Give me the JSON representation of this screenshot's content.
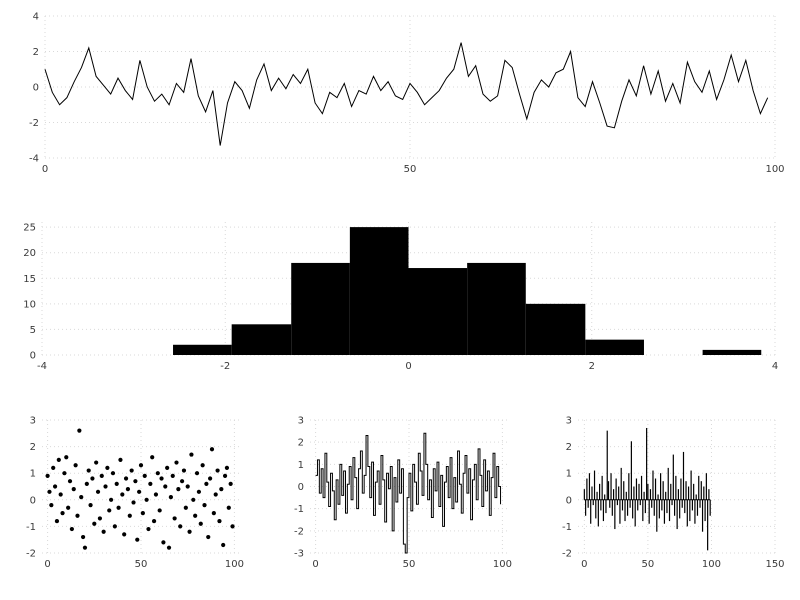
{
  "figure": {
    "background": "#ffffff",
    "grid_color": "#d9d9d9",
    "data_color": "#000000",
    "tick_color": "#3a3a3a"
  },
  "chart_data": [
    {
      "id": "line-plot",
      "type": "line",
      "title": "",
      "xlabel": "",
      "ylabel": "",
      "xlim": [
        0,
        100
      ],
      "ylim": [
        -4,
        4
      ],
      "xticks": [
        0,
        50,
        100
      ],
      "yticks": [
        -4,
        -2,
        0,
        2,
        4
      ],
      "grid": true,
      "values": [
        1.0,
        -0.3,
        -1.0,
        -0.6,
        0.3,
        1.1,
        2.2,
        0.6,
        0.1,
        -0.4,
        0.5,
        -0.2,
        -0.7,
        1.5,
        0.0,
        -0.8,
        -0.4,
        -1.0,
        0.2,
        -0.3,
        1.6,
        -0.5,
        -1.4,
        -0.2,
        -3.3,
        -0.9,
        0.3,
        -0.2,
        -1.2,
        0.4,
        1.3,
        -0.2,
        0.5,
        -0.1,
        0.7,
        0.2,
        1.0,
        -0.9,
        -1.5,
        -0.3,
        -0.6,
        0.2,
        -1.1,
        -0.2,
        -0.4,
        0.6,
        -0.2,
        0.3,
        -0.5,
        -0.7,
        0.2,
        -0.3,
        -1.0,
        -0.6,
        -0.2,
        0.5,
        1.0,
        2.5,
        0.6,
        1.2,
        -0.4,
        -0.8,
        -0.5,
        1.5,
        1.1,
        -0.4,
        -1.8,
        -0.3,
        0.4,
        0.0,
        0.8,
        1.0,
        2.0,
        -0.6,
        -1.1,
        0.3,
        -0.9,
        -2.2,
        -2.3,
        -0.8,
        0.4,
        -0.5,
        1.2,
        -0.4,
        0.9,
        -0.8,
        0.2,
        -0.9,
        1.4,
        0.3,
        -0.3,
        0.9,
        -0.7,
        0.4,
        1.8,
        0.3,
        1.5,
        -0.2,
        -1.5,
        -0.6
      ]
    },
    {
      "id": "histogram",
      "type": "bar",
      "title": "",
      "xlabel": "",
      "ylabel": "",
      "xlim": [
        -4,
        4
      ],
      "ylim": [
        0,
        26
      ],
      "xticks": [
        -4,
        -2,
        0,
        2,
        4
      ],
      "yticks": [
        0,
        5,
        10,
        15,
        20,
        25
      ],
      "grid": true,
      "bin_edges": [
        -2.57,
        -1.93,
        -1.28,
        -0.64,
        0.0,
        0.64,
        1.28,
        1.93,
        2.57,
        3.21,
        3.85
      ],
      "counts": [
        2,
        6,
        18,
        25,
        17,
        18,
        10,
        3,
        0,
        1
      ]
    },
    {
      "id": "scatter-plot",
      "type": "scatter",
      "title": "",
      "xlabel": "",
      "ylabel": "",
      "xlim": [
        -3,
        103
      ],
      "ylim": [
        -2,
        3
      ],
      "xticks": [
        0,
        50,
        100
      ],
      "yticks": [
        -2,
        -1,
        0,
        1,
        2,
        3
      ],
      "grid": true,
      "values": [
        0.9,
        0.3,
        -0.2,
        1.2,
        0.5,
        -0.8,
        1.5,
        0.2,
        -0.5,
        1.0,
        1.6,
        -0.3,
        0.7,
        -1.1,
        0.4,
        1.3,
        -0.6,
        2.6,
        0.1,
        -1.4,
        -1.8,
        0.6,
        1.1,
        -0.2,
        0.8,
        -0.9,
        1.4,
        0.3,
        -0.7,
        0.9,
        -1.2,
        0.5,
        1.2,
        -0.4,
        0.0,
        1.0,
        -1.0,
        0.6,
        -0.3,
        1.5,
        0.2,
        -1.3,
        0.8,
        0.4,
        -0.6,
        1.1,
        -0.1,
        0.7,
        -1.5,
        0.3,
        1.3,
        -0.5,
        0.9,
        0.0,
        -1.1,
        0.6,
        1.6,
        -0.8,
        0.2,
        1.0,
        -0.4,
        0.8,
        -1.6,
        0.5,
        1.2,
        -1.8,
        0.1,
        0.9,
        -0.7,
        1.4,
        0.4,
        -1.0,
        0.7,
        1.1,
        -0.3,
        0.5,
        -1.2,
        1.7,
        0.0,
        -0.6,
        1.0,
        0.3,
        -0.9,
        1.3,
        -0.2,
        0.6,
        -1.4,
        0.8,
        1.9,
        -0.5,
        0.2,
        1.1,
        -0.8,
        0.4,
        -1.7,
        0.9,
        1.2,
        -0.3,
        0.6,
        -1.0
      ]
    },
    {
      "id": "step-plot",
      "type": "step",
      "title": "",
      "xlabel": "",
      "ylabel": "",
      "xlim": [
        -3,
        103
      ],
      "ylim": [
        -3,
        3
      ],
      "xticks": [
        0,
        50,
        100
      ],
      "yticks": [
        -3,
        -2,
        -1,
        0,
        1,
        2,
        3
      ],
      "grid": true,
      "values": [
        0.5,
        1.2,
        -0.3,
        0.8,
        -0.5,
        1.5,
        0.2,
        -0.9,
        0.6,
        -0.2,
        -1.5,
        0.3,
        -0.8,
        1.0,
        -0.4,
        0.7,
        -1.2,
        0.1,
        0.9,
        -0.6,
        1.3,
        0.4,
        -1.0,
        0.8,
        1.6,
        -0.3,
        0.5,
        2.3,
        0.9,
        -0.5,
        1.1,
        -1.3,
        0.2,
        0.7,
        -0.8,
        1.4,
        0.3,
        -1.6,
        0.6,
        -0.1,
        0.9,
        -2.0,
        0.4,
        -0.7,
        1.2,
        -0.3,
        0.8,
        -2.6,
        -3.0,
        -0.5,
        0.6,
        -1.1,
        1.0,
        0.2,
        -0.8,
        1.5,
        0.7,
        -0.4,
        2.4,
        1.0,
        -0.6,
        0.3,
        -1.4,
        0.8,
        -0.2,
        1.1,
        -0.9,
        0.5,
        -1.8,
        0.2,
        0.9,
        -0.5,
        1.3,
        -1.0,
        0.4,
        -0.7,
        1.6,
        0.1,
        -1.2,
        0.6,
        1.4,
        -0.3,
        0.8,
        -1.5,
        0.3,
        1.0,
        -0.6,
        1.7,
        0.5,
        -0.9,
        1.2,
        -0.2,
        0.7,
        -1.3,
        0.4,
        1.5,
        -0.5,
        0.9,
        0.0,
        -0.8
      ]
    },
    {
      "id": "stem-plot",
      "type": "stem",
      "title": "",
      "xlabel": "",
      "ylabel": "",
      "xlim": [
        -5,
        150
      ],
      "ylim": [
        -2,
        3
      ],
      "xticks": [
        0,
        50,
        100,
        150
      ],
      "yticks": [
        -2,
        -1,
        0,
        1,
        2,
        3
      ],
      "grid": true,
      "values": [
        0.4,
        -0.6,
        0.8,
        -0.3,
        1.0,
        -0.9,
        0.5,
        -0.2,
        1.1,
        -0.7,
        0.3,
        -1.0,
        0.6,
        -0.4,
        0.9,
        -0.8,
        0.2,
        -0.5,
        2.6,
        0.7,
        -0.3,
        1.0,
        -0.6,
        0.4,
        -1.1,
        0.8,
        -0.2,
        0.5,
        -0.9,
        1.2,
        -0.4,
        0.7,
        -0.8,
        0.3,
        -0.6,
        1.0,
        -0.3,
        2.2,
        -0.7,
        0.5,
        -1.0,
        0.8,
        -0.4,
        0.6,
        -0.2,
        0.9,
        -0.8,
        0.3,
        -0.5,
        2.7,
        0.6,
        -0.9,
        0.4,
        -0.3,
        1.1,
        -0.6,
        0.8,
        -1.2,
        0.2,
        -0.7,
        1.0,
        -0.4,
        0.7,
        -0.9,
        0.3,
        -0.5,
        1.2,
        -0.8,
        0.6,
        -0.2,
        1.7,
        -0.6,
        0.9,
        -1.1,
        0.4,
        -0.7,
        0.8,
        -0.3,
        1.8,
        -0.5,
        0.7,
        -1.0,
        0.5,
        -0.8,
        1.1,
        -0.4,
        0.6,
        -0.9,
        0.2,
        -0.6,
        0.9,
        -0.3,
        0.7,
        -1.2,
        0.5,
        -0.8,
        1.0,
        -1.9,
        0.4,
        -0.6
      ]
    }
  ]
}
